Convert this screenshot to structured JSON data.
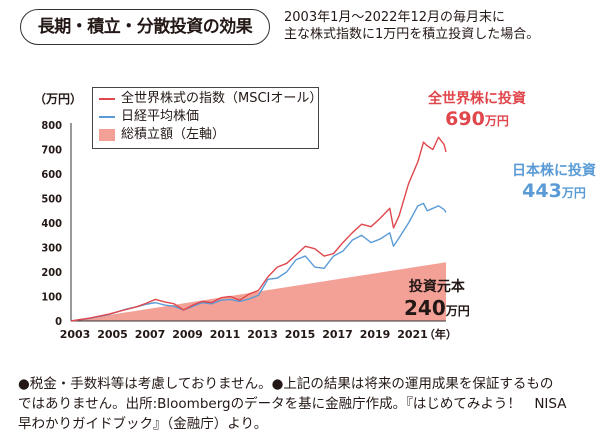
{
  "header": {
    "title": "長期・積立・分散投資の効果",
    "subtitle_lines": [
      "2003年1月〜2022年12月の毎月末に",
      "主な株式指数に1万円を積立投資した場合。"
    ]
  },
  "colors": {
    "msci": "#e0474c",
    "nikkei": "#5b9bd5",
    "principal": "#f3a097"
  },
  "chart_data": {
    "type": "line",
    "ylabel": "（万円）",
    "xlabel": "（年）",
    "ylim": [
      0,
      800
    ],
    "xlim": [
      2003,
      2023
    ],
    "yticks": [
      "0",
      "100",
      "200",
      "300",
      "400",
      "500",
      "600",
      "700",
      "800"
    ],
    "xticks": [
      "2003",
      "2005",
      "2007",
      "2009",
      "2011",
      "2013",
      "2015",
      "2017",
      "2019",
      "2021"
    ],
    "legend": [
      "全世界株式の指数（MSCIオール）",
      "日経平均株価",
      "総積立額（左軸）"
    ],
    "x": [
      2003,
      2004,
      2005,
      2006,
      2006.5,
      2007,
      2007.5,
      2008,
      2008.5,
      2009,
      2009.5,
      2010,
      2010.5,
      2011,
      2011.5,
      2012,
      2012.5,
      2013,
      2013.5,
      2014,
      2014.5,
      2015,
      2015.5,
      2016,
      2016.5,
      2017,
      2017.5,
      2018,
      2018.5,
      2019,
      2019.5,
      2020,
      2020.2,
      2020.5,
      2021,
      2021.5,
      2021.8,
      2022,
      2022.3,
      2022.6,
      2022.9,
      2023
    ],
    "series": [
      {
        "name": "全世界株式の指数（MSCIオール）",
        "values": [
          0,
          12,
          28,
          48,
          58,
          72,
          88,
          78,
          70,
          45,
          65,
          80,
          75,
          95,
          100,
          85,
          110,
          125,
          180,
          220,
          235,
          270,
          305,
          295,
          265,
          275,
          320,
          360,
          395,
          385,
          420,
          460,
          380,
          430,
          560,
          650,
          730,
          715,
          700,
          750,
          720,
          690
        ]
      },
      {
        "name": "日経平均株価",
        "values": [
          0,
          11,
          26,
          50,
          58,
          68,
          75,
          65,
          60,
          45,
          60,
          75,
          70,
          85,
          88,
          80,
          90,
          105,
          170,
          175,
          200,
          250,
          265,
          220,
          215,
          265,
          285,
          330,
          350,
          320,
          335,
          360,
          305,
          340,
          400,
          470,
          480,
          450,
          460,
          470,
          455,
          443
        ]
      },
      {
        "name": "総積立額（左軸）",
        "x": [
          2003,
          2023
        ],
        "values": [
          0,
          240
        ]
      }
    ],
    "annotations": {
      "msci": {
        "label": "全世界株に投資",
        "value": "690",
        "unit": "万円"
      },
      "nikkei": {
        "label": "日本株に投資",
        "value": "443",
        "unit": "万円"
      },
      "principal": {
        "label": "投資元本",
        "value": "240",
        "unit": "万円"
      }
    }
  },
  "footnotes": [
    "●税金・手数料等は考慮しておりません。●上記の結果は将来の運用成果を保証するもの",
    "ではありません。出所:Bloombergのデータを基に金融庁作成。『はじめてみよう！　NISA",
    "早わかりガイドブック』（金融庁）より。"
  ]
}
